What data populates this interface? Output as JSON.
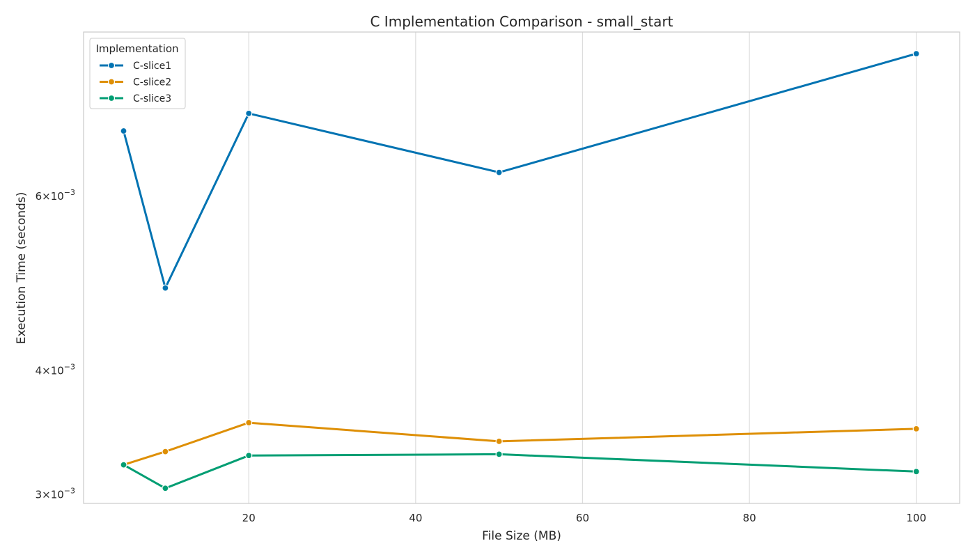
{
  "chart_data": {
    "type": "line",
    "title": "C Implementation Comparison - small_start",
    "xlabel": "File Size (MB)",
    "ylabel": "Execution Time (seconds)",
    "y_scale": "log",
    "grid": "vertical",
    "legend_title": "Implementation",
    "legend_position": "top-left",
    "xlim": [
      0.2,
      105.2
    ],
    "ylim": [
      0.002935,
      0.00877
    ],
    "x_ticks": [
      {
        "value": 20,
        "label": "20"
      },
      {
        "value": 40,
        "label": "40"
      },
      {
        "value": 60,
        "label": "60"
      },
      {
        "value": 80,
        "label": "80"
      },
      {
        "value": 100,
        "label": "100"
      }
    ],
    "y_ticks": [
      {
        "value": 0.003,
        "mant": "3",
        "exp": "−3"
      },
      {
        "value": 0.004,
        "mant": "4",
        "exp": "−3"
      },
      {
        "value": 0.006,
        "mant": "6",
        "exp": "−3"
      }
    ],
    "x": [
      5,
      10,
      20,
      50,
      100
    ],
    "series": [
      {
        "name": "C-slice1",
        "color": "#0173b2",
        "values": [
          0.00697,
          0.00484,
          0.00726,
          0.00633,
          0.00834
        ]
      },
      {
        "name": "C-slice2",
        "color": "#de8f05",
        "values": [
          0.00321,
          0.00331,
          0.00354,
          0.00339,
          0.00349
        ]
      },
      {
        "name": "C-slice3",
        "color": "#029e73",
        "values": [
          0.00321,
          0.00304,
          0.00328,
          0.00329,
          0.00316
        ]
      }
    ]
  }
}
